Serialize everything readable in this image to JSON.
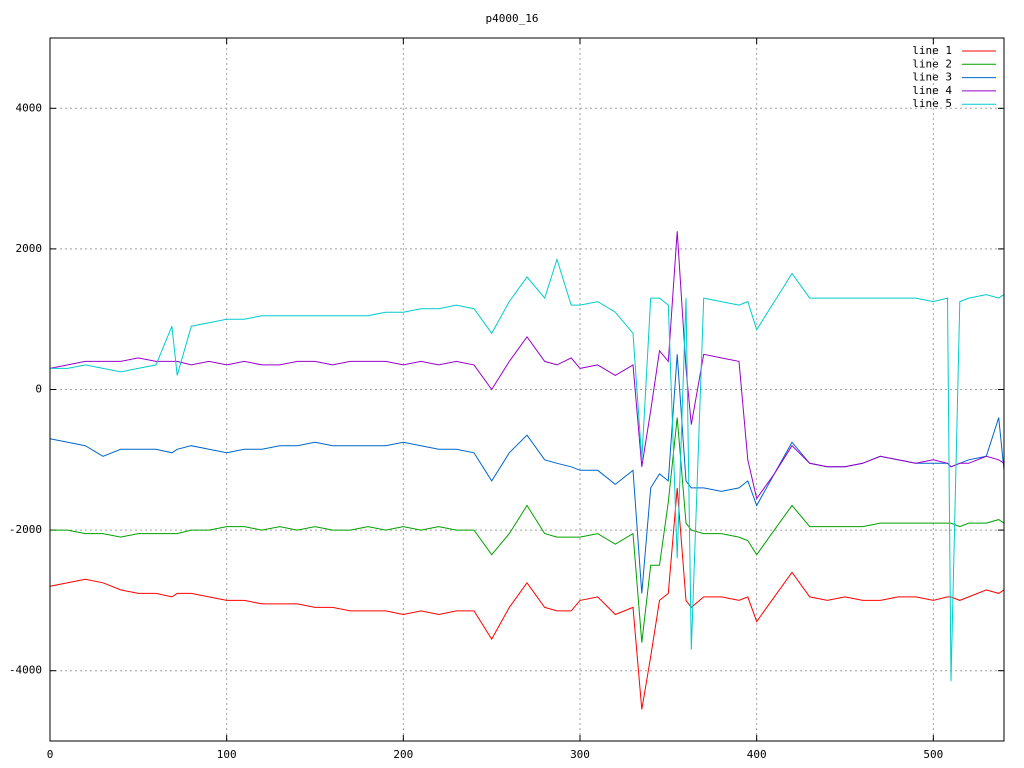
{
  "chart_data": {
    "type": "line",
    "title": "p4000_16",
    "x": [
      0,
      10,
      20,
      30,
      40,
      50,
      60,
      69,
      72,
      80,
      90,
      100,
      110,
      120,
      130,
      140,
      150,
      160,
      170,
      180,
      190,
      200,
      210,
      220,
      230,
      240,
      250,
      260,
      270,
      280,
      287,
      295,
      300,
      310,
      320,
      330,
      335,
      340,
      345,
      350,
      355,
      360,
      363,
      370,
      380,
      390,
      395,
      400,
      410,
      420,
      430,
      440,
      450,
      460,
      470,
      480,
      490,
      500,
      508,
      510,
      515,
      520,
      530,
      537,
      540
    ],
    "series": [
      {
        "name": "line 1",
        "color": "#ff0000",
        "values": [
          -2800,
          -2750,
          -2700,
          -2750,
          -2850,
          -2900,
          -2900,
          -2950,
          -2900,
          -2900,
          -2950,
          -3000,
          -3000,
          -3050,
          -3050,
          -3050,
          -3100,
          -3100,
          -3150,
          -3150,
          -3150,
          -3200,
          -3150,
          -3200,
          -3150,
          -3150,
          -3550,
          -3100,
          -2750,
          -3100,
          -3150,
          -3150,
          -3000,
          -2950,
          -3200,
          -3100,
          -4550,
          -3800,
          -3000,
          -2900,
          -1400,
          -3000,
          -3100,
          -2950,
          -2950,
          -3000,
          -2950,
          -3300,
          -2950,
          -2600,
          -2950,
          -3000,
          -2950,
          -3000,
          -3000,
          -2950,
          -2950,
          -3000,
          -2950,
          -2950,
          -3000,
          -2950,
          -2850,
          -2900,
          -2850
        ]
      },
      {
        "name": "line 2",
        "color": "#00a000",
        "values": [
          -2000,
          -2000,
          -2050,
          -2050,
          -2100,
          -2050,
          -2050,
          -2050,
          -2050,
          -2000,
          -2000,
          -1950,
          -1950,
          -2000,
          -1950,
          -2000,
          -1950,
          -2000,
          -2000,
          -1950,
          -2000,
          -1950,
          -2000,
          -1950,
          -2000,
          -2000,
          -2350,
          -2050,
          -1650,
          -2050,
          -2100,
          -2100,
          -2100,
          -2050,
          -2200,
          -2050,
          -3600,
          -2500,
          -2500,
          -1600,
          -400,
          -1900,
          -2000,
          -2050,
          -2050,
          -2100,
          -2150,
          -2350,
          -2000,
          -1650,
          -1950,
          -1950,
          -1950,
          -1950,
          -1900,
          -1900,
          -1900,
          -1900,
          -1900,
          -1900,
          -1950,
          -1900,
          -1900,
          -1850,
          -1900
        ]
      },
      {
        "name": "line 3",
        "color": "#0066cc",
        "values": [
          -700,
          -750,
          -800,
          -950,
          -850,
          -850,
          -850,
          -900,
          -850,
          -800,
          -850,
          -900,
          -850,
          -850,
          -800,
          -800,
          -750,
          -800,
          -800,
          -800,
          -800,
          -750,
          -800,
          -850,
          -850,
          -900,
          -1300,
          -900,
          -650,
          -1000,
          -1050,
          -1100,
          -1150,
          -1150,
          -1350,
          -1150,
          -2900,
          -1400,
          -1200,
          -1300,
          500,
          -1300,
          -1400,
          -1400,
          -1450,
          -1400,
          -1300,
          -1650,
          -1200,
          -750,
          -1050,
          -1100,
          -1100,
          -1050,
          -950,
          -1000,
          -1050,
          -1050,
          -1050,
          -1100,
          -1050,
          -1000,
          -950,
          -400,
          -1150
        ]
      },
      {
        "name": "line 4",
        "color": "#9900cc",
        "values": [
          300,
          350,
          400,
          400,
          400,
          450,
          400,
          400,
          400,
          350,
          400,
          350,
          400,
          350,
          350,
          400,
          400,
          350,
          400,
          400,
          400,
          350,
          400,
          350,
          400,
          350,
          0,
          400,
          750,
          400,
          350,
          450,
          300,
          350,
          200,
          350,
          -1100,
          -300,
          550,
          400,
          2250,
          300,
          -500,
          500,
          450,
          400,
          -1000,
          -1550,
          -1200,
          -800,
          -1050,
          -1100,
          -1100,
          -1050,
          -950,
          -1000,
          -1050,
          -1000,
          -1050,
          -1100,
          -1050,
          -1050,
          -950,
          -1000,
          -1050
        ]
      },
      {
        "name": "line 5",
        "color": "#00cccc",
        "values": [
          300,
          300,
          350,
          300,
          250,
          300,
          350,
          900,
          200,
          900,
          950,
          1000,
          1000,
          1050,
          1050,
          1050,
          1050,
          1050,
          1050,
          1050,
          1100,
          1100,
          1150,
          1150,
          1200,
          1150,
          800,
          1250,
          1600,
          1300,
          1850,
          1200,
          1200,
          1250,
          1100,
          800,
          -1000,
          1300,
          1300,
          1200,
          -2400,
          1300,
          -3700,
          1300,
          1250,
          1200,
          1250,
          850,
          1250,
          1650,
          1300,
          1300,
          1300,
          1300,
          1300,
          1300,
          1300,
          1250,
          1300,
          -4150,
          1250,
          1300,
          1350,
          1300,
          1350
        ]
      }
    ],
    "xlim": [
      0,
      540
    ],
    "ylim": [
      -5000,
      5000
    ],
    "xticks": [
      0,
      100,
      200,
      300,
      400,
      500
    ],
    "yticks": [
      -4000,
      -2000,
      0,
      2000,
      4000
    ],
    "grid": true,
    "legend": "top-right"
  }
}
